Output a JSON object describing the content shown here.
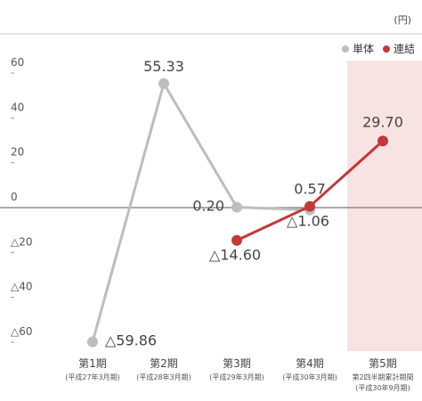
{
  "unit": "(円)",
  "legend": [
    {
      "name": "単体",
      "color": "#bdbdbd"
    },
    {
      "name": "連結",
      "color": "#c0393b"
    }
  ],
  "chart_data": {
    "type": "line",
    "categories": [
      "第1期",
      "第2期",
      "第3期",
      "第4期",
      "第5期"
    ],
    "category_sublabels": [
      "(平成27年3月期)",
      "(平成28年3月期)",
      "(平成29年3月期)",
      "(平成30年3月期)",
      "第2四半期累計期間\n(平成30年9月期)"
    ],
    "ylim": [
      -60,
      60
    ],
    "yticks": [
      60,
      40,
      20,
      0,
      -20,
      -40,
      -60
    ],
    "ytick_labels": [
      "60",
      "40",
      "20",
      "0",
      "△20",
      "△40",
      "△60"
    ],
    "highlight_category": "第5期",
    "series": [
      {
        "name": "単体",
        "color": "#bdbdbd",
        "values": [
          -59.86,
          55.33,
          0.2,
          -1.06,
          null
        ],
        "labels": [
          "△59.86",
          "55.33",
          "0.20",
          "△1.06",
          ""
        ]
      },
      {
        "name": "連結",
        "color": "#c0393b",
        "values": [
          null,
          null,
          -14.6,
          0.57,
          29.7
        ],
        "labels": [
          "",
          "",
          "△14.60",
          "0.57",
          "29.70"
        ]
      }
    ]
  }
}
